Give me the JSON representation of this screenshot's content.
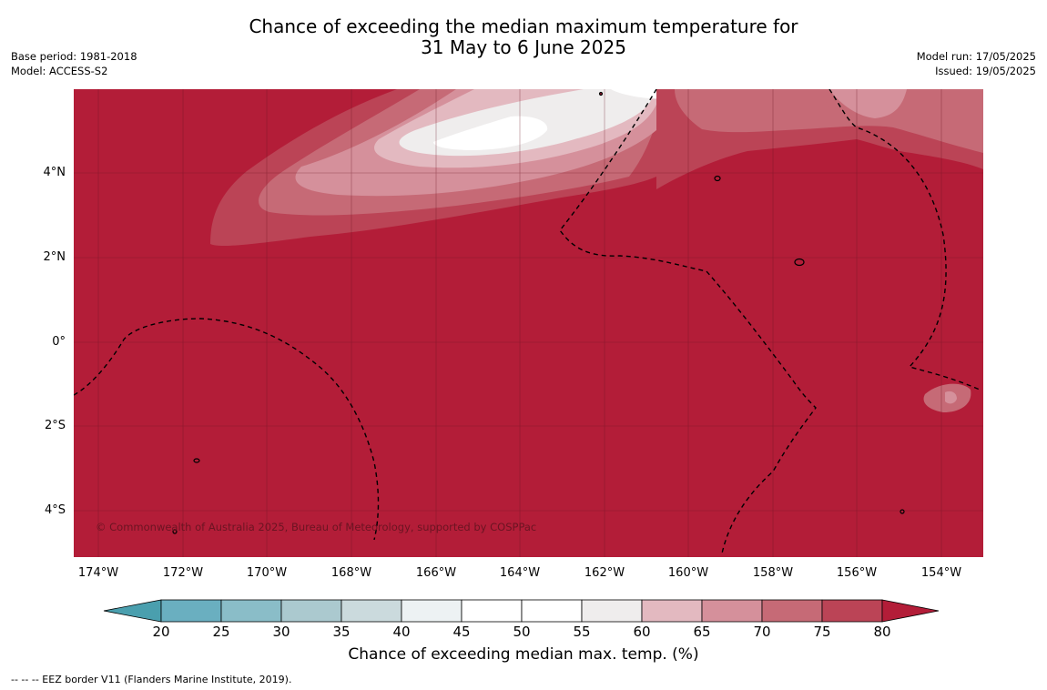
{
  "title": {
    "line1": "Chance of exceeding the median maximum temperature for",
    "line2": "31 May to 6 June 2025"
  },
  "meta": {
    "base_period": "Base period: 1981-2018",
    "model": "Model: ACCESS-S2",
    "model_run": "Model run: 17/05/2025",
    "issued": "Issued: 19/05/2025"
  },
  "map": {
    "lat_labels": [
      "4°N",
      "2°N",
      "0°",
      "2°S",
      "4°S"
    ],
    "lon_labels": [
      "174°W",
      "172°W",
      "170°W",
      "168°W",
      "166°W",
      "164°W",
      "162°W",
      "160°W",
      "158°W",
      "156°W",
      "154°W"
    ],
    "copyright": "© Commonwealth of Australia 2025, Bureau of Meteorology, supported by COSPPac",
    "background_color": "#b31d38"
  },
  "legend": {
    "ticks": [
      "20",
      "25",
      "30",
      "35",
      "40",
      "45",
      "50",
      "55",
      "60",
      "65",
      "70",
      "75",
      "80"
    ],
    "colors": [
      "#4a9fae",
      "#6aafc0",
      "#8abdc8",
      "#abc9cf",
      "#cbdadd",
      "#edf2f3",
      "#ffffff",
      "#ffffff",
      "#efeded",
      "#e3b9c0",
      "#d5909b",
      "#c66a76",
      "#bb4456",
      "#b31d38"
    ],
    "label": "Chance of exceeding median max. temp. (%)"
  },
  "footnote": "--  --  -- EEZ border V11 (Flanders Marine Institute, 2019)."
}
